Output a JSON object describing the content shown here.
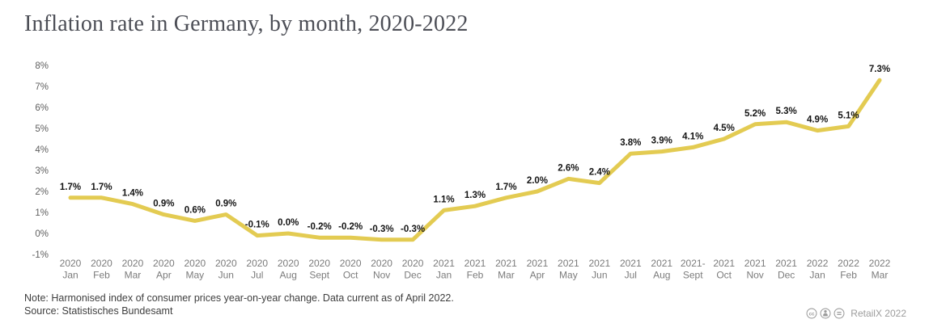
{
  "title": "Inflation rate in Germany, by month, 2020-2022",
  "chart_data": {
    "type": "line",
    "title": "Inflation rate in Germany, by month, 2020-2022",
    "categories": [
      [
        "2020",
        "Jan"
      ],
      [
        "2020",
        "Feb"
      ],
      [
        "2020",
        "Mar"
      ],
      [
        "2020",
        "Apr"
      ],
      [
        "2020",
        "May"
      ],
      [
        "2020",
        "Jun"
      ],
      [
        "2020",
        "Jul"
      ],
      [
        "2020",
        "Aug"
      ],
      [
        "2020",
        "Sept"
      ],
      [
        "2020",
        "Oct"
      ],
      [
        "2020",
        "Nov"
      ],
      [
        "2020",
        "Dec"
      ],
      [
        "2021",
        "Jan"
      ],
      [
        "2021",
        "Feb"
      ],
      [
        "2021",
        "Mar"
      ],
      [
        "2021",
        "Apr"
      ],
      [
        "2021",
        "May"
      ],
      [
        "2021",
        "Jun"
      ],
      [
        "2021",
        "Jul"
      ],
      [
        "2021",
        "Aug"
      ],
      [
        "2021-",
        "Sept"
      ],
      [
        "2021",
        "Oct"
      ],
      [
        "2021",
        "Nov"
      ],
      [
        "2021",
        "Dec"
      ],
      [
        "2022",
        "Jan"
      ],
      [
        "2022",
        "Feb"
      ],
      [
        "2022",
        "Mar"
      ]
    ],
    "values": [
      1.7,
      1.7,
      1.4,
      0.9,
      0.6,
      0.9,
      -0.1,
      0.0,
      -0.2,
      -0.2,
      -0.3,
      -0.3,
      1.1,
      1.3,
      1.7,
      2.0,
      2.6,
      2.4,
      3.8,
      3.9,
      4.1,
      4.5,
      5.2,
      5.3,
      4.9,
      5.1,
      7.3
    ],
    "point_labels": [
      "1.7%",
      "1.7%",
      "1.4%",
      "0.9%",
      "0.6%",
      "0.9%",
      "-0.1%",
      "0.0%",
      "-0.2%",
      "-0.2%",
      "-0.3%",
      "-0.3%",
      "1.1%",
      "1.3%",
      "1.7%",
      "2.0%",
      "2.6%",
      "2.4%",
      "3.8%",
      "3.9%",
      "4.1%",
      "4.5%",
      "5.2%",
      "5.3%",
      "4.9%",
      "5.1%",
      "7.3%"
    ],
    "y_ticks": [
      "8%",
      "7%",
      "6%",
      "5%",
      "4%",
      "3%",
      "2%",
      "1%",
      "0%",
      "-1%"
    ],
    "ylim": [
      -1,
      8
    ],
    "grid": false,
    "legend": "none",
    "line_color": "#E3CB52",
    "label_color": "#141414"
  },
  "note": "Note: Harmonised index of consumer prices year-on-year change. Data current as of April 2022.",
  "source": "Source: Statistisches Bundesamt",
  "footer": {
    "license_icons": [
      "cc-circle-icon",
      "attribution-person-icon",
      "no-derivatives-equals-icon"
    ],
    "credit": "RetailX 2022"
  },
  "colors": {
    "background": "#ffffff",
    "title_text": "#4c4e56",
    "y_tick_text": "#5f5f5f",
    "x_tick_text": "#7b7b7b",
    "note_text": "#3e3e3e",
    "credit_text": "#9c9c9c"
  }
}
